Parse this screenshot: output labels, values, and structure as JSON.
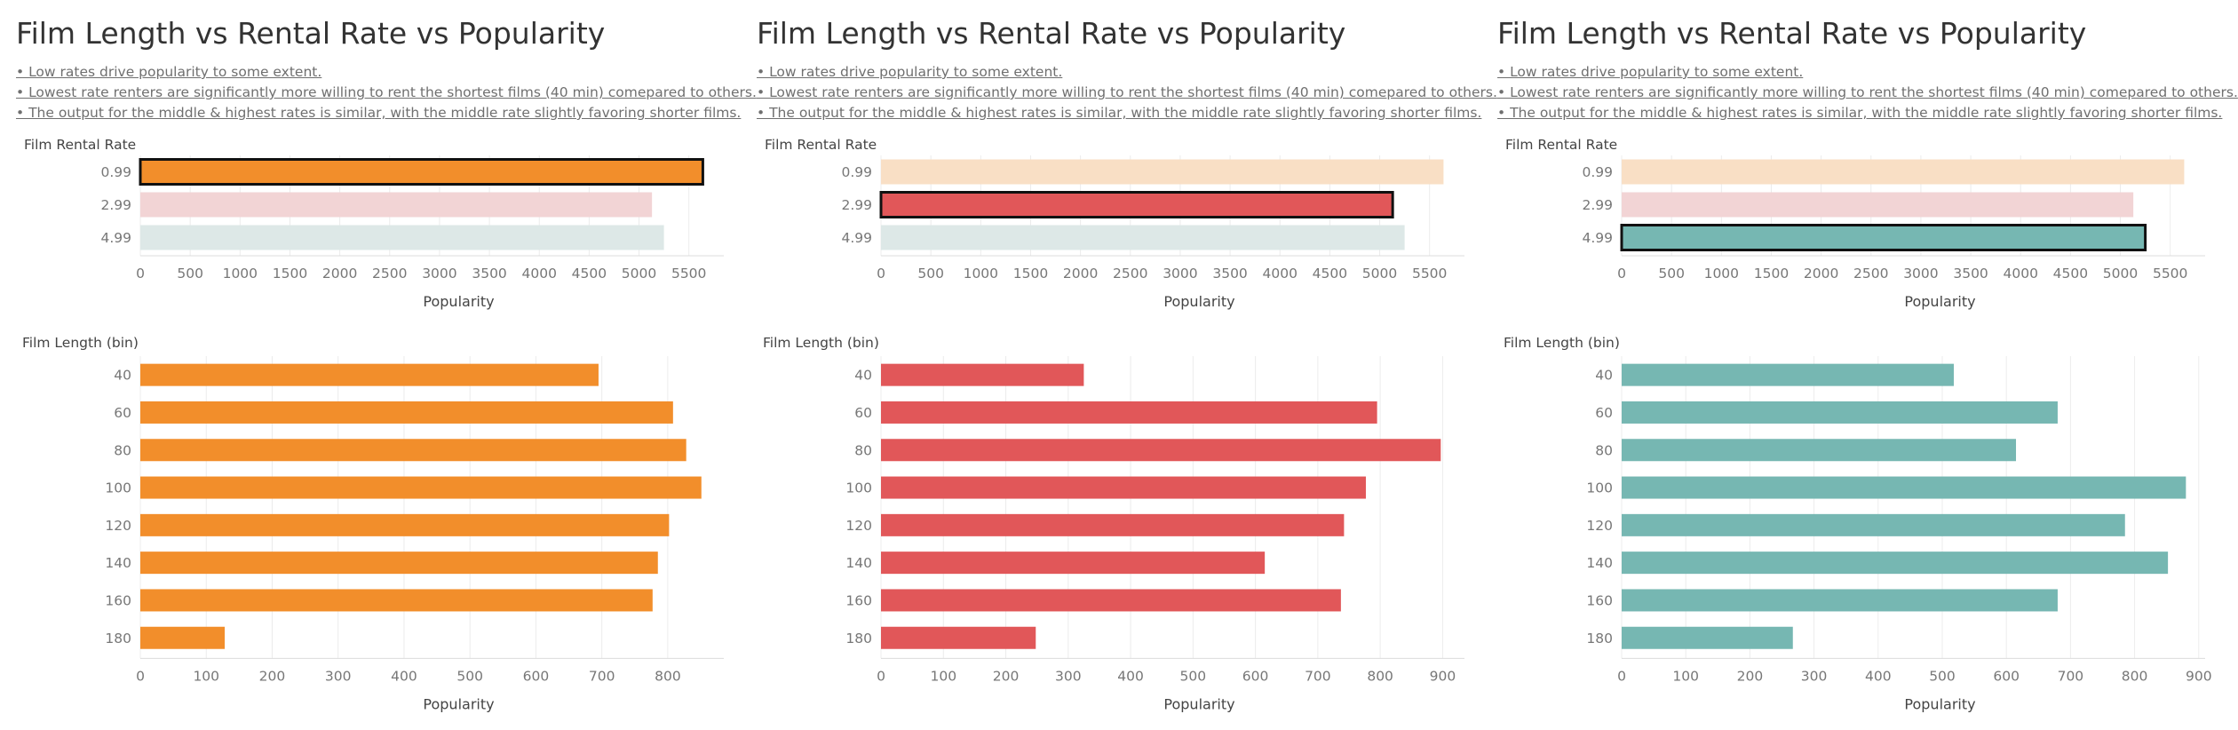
{
  "panels": [
    {
      "title": "Film Length vs Rental Rate vs Popularity",
      "notes": [
        "• Low rates drive popularity to some extent.",
        "• Lowest rate renters are significantly more willing to rent the shortest films (40 min) comepared to others.",
        "• The output for the middle & highest rates is similar, with the middle rate slightly favoring shorter films."
      ],
      "selected_rate": "0.99"
    },
    {
      "title": "Film Length vs Rental Rate vs Popularity",
      "notes": [
        "• Low rates drive popularity to some extent.",
        "• Lowest rate renters are significantly more willing to rent the shortest films (40 min) comepared to others.",
        "• The output for the middle & highest rates is similar, with the middle rate slightly favoring shorter films."
      ],
      "selected_rate": "2.99"
    },
    {
      "title": "Film Length vs Rental Rate vs Popularity",
      "notes": [
        "• Low rates drive popularity to some extent.",
        "• Lowest rate renters are significantly more willing to rent the shortest films (40 min) comepared to others.",
        "• The output for the middle & highest rates is similar, with the middle rate slightly favoring shorter films."
      ],
      "selected_rate": "4.99"
    }
  ],
  "colors": {
    "0.99": "#f28e2b",
    "2.99": "#e15759",
    "4.99": "#76b7b2",
    "0.99_faded": "#f9dfc5",
    "2.99_faded": "#f2d4d5",
    "4.99_faded": "#dde8e7",
    "selected_outline": "#111111"
  },
  "chart_data": [
    {
      "type": "bar",
      "orientation": "horizontal",
      "panel": 1,
      "category_header": "Film Rental Rate",
      "categories": [
        "0.99",
        "2.99",
        "4.99"
      ],
      "values": [
        5640,
        5130,
        5250
      ],
      "highlighted": "0.99",
      "xlabel": "Popularity",
      "xlim": [
        0,
        5850
      ],
      "xticks": [
        0,
        500,
        1000,
        1500,
        2000,
        2500,
        3000,
        3500,
        4000,
        4500,
        5000,
        5500
      ]
    },
    {
      "type": "bar",
      "orientation": "horizontal",
      "panel": 1,
      "category_header": "Film Length (bin)",
      "categories": [
        "40",
        "60",
        "80",
        "100",
        "120",
        "140",
        "160",
        "180"
      ],
      "values": [
        695,
        808,
        828,
        851,
        802,
        785,
        777,
        128
      ],
      "xlabel": "Popularity",
      "xlim": [
        0,
        885
      ],
      "xticks": [
        0,
        100,
        200,
        300,
        400,
        500,
        600,
        700,
        800
      ]
    },
    {
      "type": "bar",
      "orientation": "horizontal",
      "panel": 2,
      "category_header": "Film Rental Rate",
      "categories": [
        "0.99",
        "2.99",
        "4.99"
      ],
      "values": [
        5640,
        5130,
        5250
      ],
      "highlighted": "2.99",
      "xlabel": "Popularity",
      "xlim": [
        0,
        5850
      ],
      "xticks": [
        0,
        500,
        1000,
        1500,
        2000,
        2500,
        3000,
        3500,
        4000,
        4500,
        5000,
        5500
      ]
    },
    {
      "type": "bar",
      "orientation": "horizontal",
      "panel": 2,
      "category_header": "Film Length (bin)",
      "categories": [
        "40",
        "60",
        "80",
        "100",
        "120",
        "140",
        "160",
        "180"
      ],
      "values": [
        325,
        795,
        897,
        777,
        742,
        615,
        737,
        248
      ],
      "xlabel": "Popularity",
      "xlim": [
        0,
        935
      ],
      "xticks": [
        0,
        100,
        200,
        300,
        400,
        500,
        600,
        700,
        800,
        900
      ]
    },
    {
      "type": "bar",
      "orientation": "horizontal",
      "panel": 3,
      "category_header": "Film Rental Rate",
      "categories": [
        "0.99",
        "2.99",
        "4.99"
      ],
      "values": [
        5640,
        5130,
        5250
      ],
      "highlighted": "4.99",
      "xlabel": "Popularity",
      "xlim": [
        0,
        5850
      ],
      "xticks": [
        0,
        500,
        1000,
        1500,
        2000,
        2500,
        3000,
        3500,
        4000,
        4500,
        5000,
        5500
      ]
    },
    {
      "type": "bar",
      "orientation": "horizontal",
      "panel": 3,
      "category_header": "Film Length (bin)",
      "categories": [
        "40",
        "60",
        "80",
        "100",
        "120",
        "140",
        "160",
        "180"
      ],
      "values": [
        518,
        680,
        615,
        880,
        785,
        852,
        680,
        267
      ],
      "xlabel": "Popularity",
      "xlim": [
        0,
        910
      ],
      "xticks": [
        0,
        100,
        200,
        300,
        400,
        500,
        600,
        700,
        800,
        900
      ]
    }
  ]
}
